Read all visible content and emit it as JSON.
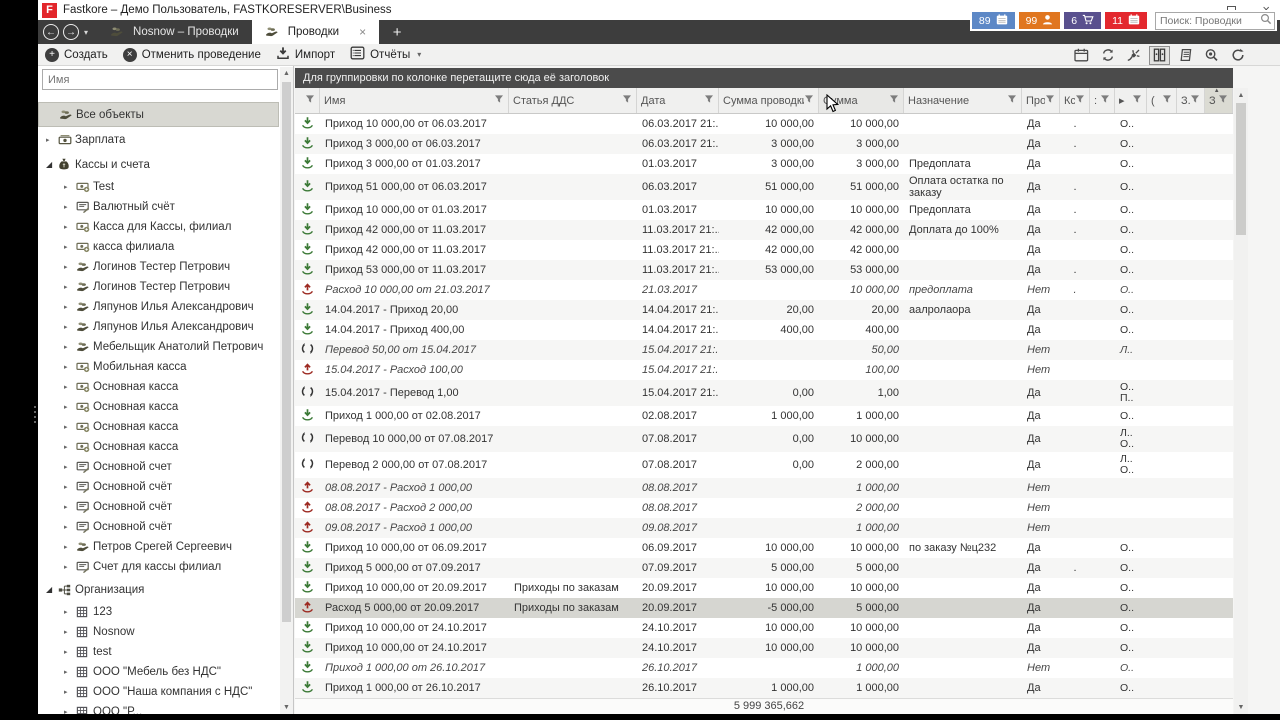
{
  "window": {
    "title": "Fastkore – Демо Пользователь, FASTKORESERVER\\Business",
    "logo_letter": "F",
    "controls": {
      "minimize": "–",
      "close": "×"
    }
  },
  "tabbar": {
    "back": "←",
    "forward": "→",
    "tabs": [
      {
        "label": "Nosnow – Проводки",
        "active": false
      },
      {
        "label": "Проводки",
        "active": true
      }
    ],
    "close_glyph": "×",
    "new_tab": "+"
  },
  "badges": [
    {
      "count": "89",
      "color": "#5d88c6",
      "icon": "calendar"
    },
    {
      "count": "99",
      "color": "#e0761f",
      "icon": "user"
    },
    {
      "count": "6",
      "color": "#59508e",
      "icon": "cart"
    },
    {
      "count": "11",
      "color": "#e3282e",
      "icon": "calendar"
    }
  ],
  "search": {
    "placeholder": "Поиск: Проводки"
  },
  "toolbar": {
    "create_label": "Создать",
    "cancel_label": "Отменить проведение",
    "import_label": "Импорт",
    "reports_label": "Отчёты",
    "right_icons": [
      "calendar",
      "recycle",
      "connect",
      "binder",
      "journal",
      "preview",
      "refresh"
    ],
    "active_right_icon": "binder"
  },
  "sidebar": {
    "filter_placeholder": "Имя",
    "items": [
      {
        "label": "Все объекты",
        "icon": "hand-money",
        "level": 0,
        "arrow": "none",
        "selected": true
      },
      {
        "label": "Зарплата",
        "icon": "banknote",
        "level": 0,
        "arrow": "collapsed"
      },
      {
        "label": "Кассы и счета",
        "icon": "moneybag",
        "level": 0,
        "arrow": "expanded"
      },
      {
        "label": "Test",
        "icon": "cash",
        "level": 1,
        "arrow": "collapsed"
      },
      {
        "label": "Валютный счёт",
        "icon": "account",
        "level": 1,
        "arrow": "collapsed"
      },
      {
        "label": "Касса для Кассы, филиал",
        "icon": "cash",
        "level": 1,
        "arrow": "collapsed"
      },
      {
        "label": "касса филиала",
        "icon": "cash",
        "level": 1,
        "arrow": "collapsed"
      },
      {
        "label": "Логинов Тестер Петрович",
        "icon": "hand-money",
        "level": 1,
        "arrow": "collapsed"
      },
      {
        "label": "Логинов Тестер Петрович",
        "icon": "hand-money",
        "level": 1,
        "arrow": "collapsed"
      },
      {
        "label": "Ляпунов Илья Александрович",
        "icon": "hand-money",
        "level": 1,
        "arrow": "collapsed"
      },
      {
        "label": "Ляпунов Илья Александрович",
        "icon": "hand-money",
        "level": 1,
        "arrow": "collapsed"
      },
      {
        "label": "Мебельщик Анатолий Петрович",
        "icon": "hand-money",
        "level": 1,
        "arrow": "collapsed"
      },
      {
        "label": "Мобильная касса",
        "icon": "cash",
        "level": 1,
        "arrow": "collapsed"
      },
      {
        "label": "Основная касса",
        "icon": "cash",
        "level": 1,
        "arrow": "collapsed"
      },
      {
        "label": "Основная касса",
        "icon": "cash",
        "level": 1,
        "arrow": "collapsed"
      },
      {
        "label": "Основная касса",
        "icon": "cash",
        "level": 1,
        "arrow": "collapsed"
      },
      {
        "label": "Основная касса",
        "icon": "cash",
        "level": 1,
        "arrow": "collapsed"
      },
      {
        "label": "Основной счет",
        "icon": "account",
        "level": 1,
        "arrow": "collapsed"
      },
      {
        "label": "Основной счёт",
        "icon": "account",
        "level": 1,
        "arrow": "collapsed"
      },
      {
        "label": "Основной счёт",
        "icon": "account",
        "level": 1,
        "arrow": "collapsed"
      },
      {
        "label": "Основной счёт",
        "icon": "account",
        "level": 1,
        "arrow": "collapsed"
      },
      {
        "label": "Петров Срегей Сергеевич",
        "icon": "hand-money",
        "level": 1,
        "arrow": "collapsed"
      },
      {
        "label": "Счет для кассы филиал",
        "icon": "account",
        "level": 1,
        "arrow": "collapsed"
      },
      {
        "label": "Организация",
        "icon": "orgchart",
        "level": 0,
        "arrow": "expanded"
      },
      {
        "label": "123",
        "icon": "company",
        "level": 1,
        "arrow": "collapsed"
      },
      {
        "label": "Nosnow",
        "icon": "company",
        "level": 1,
        "arrow": "collapsed"
      },
      {
        "label": "test",
        "icon": "company",
        "level": 1,
        "arrow": "collapsed"
      },
      {
        "label": "ООО \"Мебель без НДС\"",
        "icon": "company",
        "level": 1,
        "arrow": "collapsed"
      },
      {
        "label": "ООО \"Наша компания с НДС\"",
        "icon": "company",
        "level": 1,
        "arrow": "collapsed"
      },
      {
        "label": "ООО \"Р...",
        "icon": "company",
        "level": 1,
        "arrow": "collapsed"
      }
    ]
  },
  "grid": {
    "groupby_hint": "Для группировки по колонке перетащите сюда её заголовок",
    "columns": [
      {
        "key": "name",
        "label": "Имя"
      },
      {
        "key": "dds",
        "label": "Статья ДДС"
      },
      {
        "key": "date",
        "label": "Дата"
      },
      {
        "key": "amount",
        "label": "Сумма проводки"
      },
      {
        "key": "sum",
        "label": "Сумма"
      },
      {
        "key": "purpose",
        "label": "Назначение"
      },
      {
        "key": "prov",
        "label": "Пров"
      },
      {
        "key": "ks",
        "label": "Кс"
      },
      {
        "key": "c1",
        "label": ":"
      },
      {
        "key": "c2",
        "label": "▸"
      },
      {
        "key": "c3",
        "label": "("
      },
      {
        "key": "c4",
        "label": "З."
      },
      {
        "key": "c5",
        "label": "З"
      }
    ],
    "rows": [
      {
        "t": "in",
        "posted": true,
        "sel": false,
        "name": "Приход 10 000,00 от 06.03.2017",
        "dds": "",
        "date": "06.03.2017 21:...",
        "amount": "10 000,00",
        "sum": "10 000,00",
        "purpose": "",
        "prov": "Да",
        "ks": ".",
        "o": "О.."
      },
      {
        "t": "in",
        "posted": true,
        "sel": false,
        "name": "Приход 3 000,00 от 06.03.2017",
        "dds": "",
        "date": "06.03.2017 21:...",
        "amount": "3 000,00",
        "sum": "3 000,00",
        "purpose": "",
        "prov": "Да",
        "ks": ".",
        "o": "О.."
      },
      {
        "t": "in",
        "posted": true,
        "sel": false,
        "name": "Приход 3 000,00 от 01.03.2017",
        "dds": "",
        "date": "01.03.2017",
        "amount": "3 000,00",
        "sum": "3 000,00",
        "purpose": "Предоплата",
        "prov": "Да",
        "ks": "",
        "o": "О.."
      },
      {
        "t": "in",
        "posted": true,
        "sel": false,
        "name": "Приход 51 000,00 от 06.03.2017",
        "dds": "",
        "date": "06.03.2017",
        "amount": "51 000,00",
        "sum": "51 000,00",
        "purpose": "Оплата остатка по заказу",
        "prov": "Да",
        "ks": ".",
        "o": "О.."
      },
      {
        "t": "in",
        "posted": true,
        "sel": false,
        "name": "Приход 10 000,00 от 01.03.2017",
        "dds": "",
        "date": "01.03.2017",
        "amount": "10 000,00",
        "sum": "10 000,00",
        "purpose": "Предоплата",
        "prov": "Да",
        "ks": ".",
        "o": "О.."
      },
      {
        "t": "in",
        "posted": true,
        "sel": false,
        "name": "Приход 42 000,00 от 11.03.2017",
        "dds": "",
        "date": "11.03.2017 21:...",
        "amount": "42 000,00",
        "sum": "42 000,00",
        "purpose": "Доплата до 100%",
        "prov": "Да",
        "ks": ".",
        "o": "О.."
      },
      {
        "t": "in",
        "posted": true,
        "sel": false,
        "name": "Приход 42 000,00 от 11.03.2017",
        "dds": "",
        "date": "11.03.2017 21:...",
        "amount": "42 000,00",
        "sum": "42 000,00",
        "purpose": "",
        "prov": "Да",
        "ks": "",
        "o": "О.."
      },
      {
        "t": "in",
        "posted": true,
        "sel": false,
        "name": "Приход 53 000,00 от 11.03.2017",
        "dds": "",
        "date": "11.03.2017 21:...",
        "amount": "53 000,00",
        "sum": "53 000,00",
        "purpose": "",
        "prov": "Да",
        "ks": ".",
        "o": "О.."
      },
      {
        "t": "out",
        "posted": false,
        "sel": false,
        "name": "Расход 10 000,00 от 21.03.2017",
        "dds": "",
        "date": "21.03.2017",
        "amount": "",
        "sum": "10 000,00",
        "purpose": "предоплата",
        "prov": "Нет",
        "ks": ".",
        "o": "О.."
      },
      {
        "t": "in",
        "posted": true,
        "sel": false,
        "name": "14.04.2017 - Приход 20,00",
        "dds": "",
        "date": "14.04.2017 21:...",
        "amount": "20,00",
        "sum": "20,00",
        "purpose": "аалролаора",
        "prov": "Да",
        "ks": "",
        "o": "О.."
      },
      {
        "t": "in",
        "posted": true,
        "sel": false,
        "name": "14.04.2017 - Приход 400,00",
        "dds": "",
        "date": "14.04.2017 21:...",
        "amount": "400,00",
        "sum": "400,00",
        "purpose": "",
        "prov": "Да",
        "ks": "",
        "o": "О.."
      },
      {
        "t": "tr",
        "posted": false,
        "sel": false,
        "name": "Перевод 50,00 от 15.04.2017",
        "dds": "",
        "date": "15.04.2017 21:...",
        "amount": "",
        "sum": "50,00",
        "purpose": "",
        "prov": "Нет",
        "ks": "",
        "o": "Л.."
      },
      {
        "t": "out",
        "posted": false,
        "sel": false,
        "name": "15.04.2017 - Расход 100,00",
        "dds": "",
        "date": "15.04.2017 21:...",
        "amount": "",
        "sum": "100,00",
        "purpose": "",
        "prov": "Нет",
        "ks": "",
        "o": ""
      },
      {
        "t": "tr",
        "posted": true,
        "sel": false,
        "name": "15.04.2017 - Перевод 1,00",
        "dds": "",
        "date": "15.04.2017 21:...",
        "amount": "0,00",
        "sum": "1,00",
        "purpose": "",
        "prov": "Да",
        "ks": "",
        "o": "О..\nП.."
      },
      {
        "t": "in",
        "posted": true,
        "sel": false,
        "name": "Приход 1 000,00 от 02.08.2017",
        "dds": "",
        "date": "02.08.2017",
        "amount": "1 000,00",
        "sum": "1 000,00",
        "purpose": "",
        "prov": "Да",
        "ks": "",
        "o": "О.."
      },
      {
        "t": "tr",
        "posted": true,
        "sel": false,
        "name": "Перевод 10 000,00 от 07.08.2017",
        "dds": "",
        "date": "07.08.2017",
        "amount": "0,00",
        "sum": "10 000,00",
        "purpose": "",
        "prov": "Да",
        "ks": "",
        "o": "Л..\nО.."
      },
      {
        "t": "tr",
        "posted": true,
        "sel": false,
        "name": "Перевод 2 000,00 от 07.08.2017",
        "dds": "",
        "date": "07.08.2017",
        "amount": "0,00",
        "sum": "2 000,00",
        "purpose": "",
        "prov": "Да",
        "ks": "",
        "o": "Л..\nО.."
      },
      {
        "t": "out",
        "posted": false,
        "sel": false,
        "name": "08.08.2017 - Расход 1 000,00",
        "dds": "",
        "date": "08.08.2017",
        "amount": "",
        "sum": "1 000,00",
        "purpose": "",
        "prov": "Нет",
        "ks": "",
        "o": ""
      },
      {
        "t": "out",
        "posted": false,
        "sel": false,
        "name": "08.08.2017 - Расход 2 000,00",
        "dds": "",
        "date": "08.08.2017",
        "amount": "",
        "sum": "2 000,00",
        "purpose": "",
        "prov": "Нет",
        "ks": "",
        "o": ""
      },
      {
        "t": "out",
        "posted": false,
        "sel": false,
        "name": "09.08.2017 - Расход 1 000,00",
        "dds": "",
        "date": "09.08.2017",
        "amount": "",
        "sum": "1 000,00",
        "purpose": "",
        "prov": "Нет",
        "ks": "",
        "o": ""
      },
      {
        "t": "in",
        "posted": true,
        "sel": false,
        "name": "Приход 10 000,00 от 06.09.2017",
        "dds": "",
        "date": "06.09.2017",
        "amount": "10 000,00",
        "sum": "10 000,00",
        "purpose": "по заказу №ц232",
        "prov": "Да",
        "ks": "",
        "o": "О.."
      },
      {
        "t": "in",
        "posted": true,
        "sel": false,
        "name": "Приход 5 000,00 от 07.09.2017",
        "dds": "",
        "date": "07.09.2017",
        "amount": "5 000,00",
        "sum": "5 000,00",
        "purpose": "",
        "prov": "Да",
        "ks": ".",
        "o": "О.."
      },
      {
        "t": "in",
        "posted": true,
        "sel": false,
        "name": "Приход 10 000,00 от 20.09.2017",
        "dds": "Приходы по заказам",
        "date": "20.09.2017",
        "amount": "10 000,00",
        "sum": "10 000,00",
        "purpose": "",
        "prov": "Да",
        "ks": "",
        "o": "О.."
      },
      {
        "t": "out",
        "posted": true,
        "sel": true,
        "name": "Расход 5 000,00 от 20.09.2017",
        "dds": "Приходы по заказам",
        "date": "20.09.2017",
        "amount": "-5 000,00",
        "sum": "5 000,00",
        "purpose": "",
        "prov": "Да",
        "ks": "",
        "o": "О.."
      },
      {
        "t": "in",
        "posted": true,
        "sel": false,
        "name": "Приход 10 000,00 от 24.10.2017",
        "dds": "",
        "date": "24.10.2017",
        "amount": "10 000,00",
        "sum": "10 000,00",
        "purpose": "",
        "prov": "Да",
        "ks": "",
        "o": "О.."
      },
      {
        "t": "in",
        "posted": true,
        "sel": false,
        "name": "Приход 10 000,00 от 24.10.2017",
        "dds": "",
        "date": "24.10.2017",
        "amount": "10 000,00",
        "sum": "10 000,00",
        "purpose": "",
        "prov": "Да",
        "ks": "",
        "o": "О.."
      },
      {
        "t": "in",
        "posted": false,
        "sel": false,
        "name": "Приход 1 000,00 от 26.10.2017",
        "dds": "",
        "date": "26.10.2017",
        "amount": "",
        "sum": "1 000,00",
        "purpose": "",
        "prov": "Нет",
        "ks": "",
        "o": "О.."
      },
      {
        "t": "in",
        "posted": true,
        "sel": false,
        "name": "Приход 1 000,00 от 26.10.2017",
        "dds": "",
        "date": "26.10.2017",
        "amount": "1 000,00",
        "sum": "1 000,00",
        "purpose": "",
        "prov": "Да",
        "ks": "",
        "o": "О.."
      }
    ],
    "footer_total": "5 999 365,662"
  }
}
